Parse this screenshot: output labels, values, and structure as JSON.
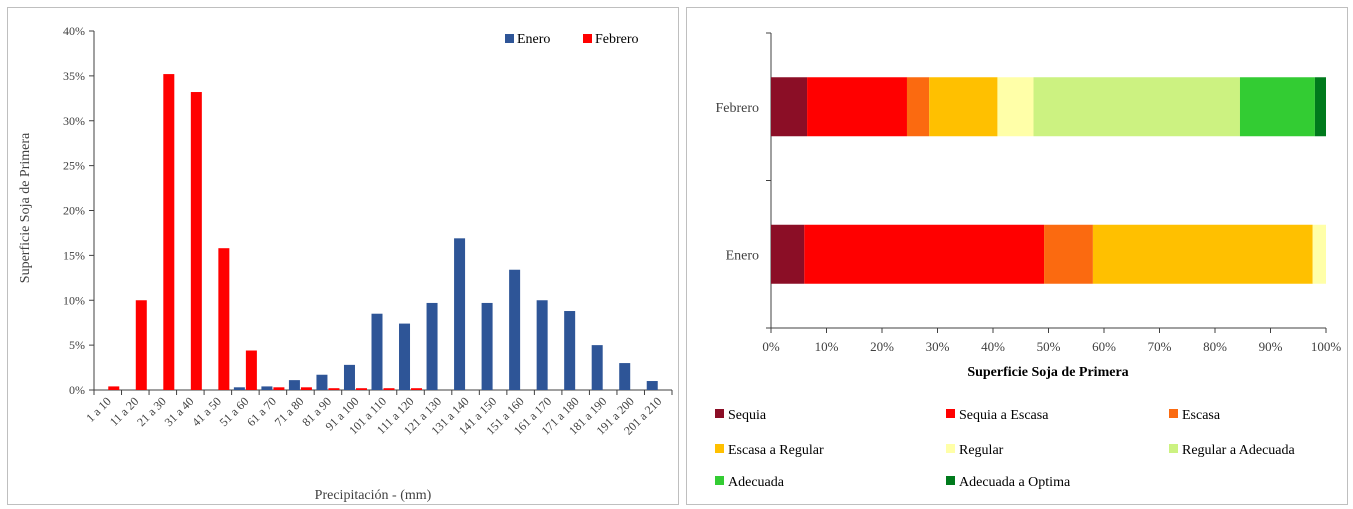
{
  "chart_data": [
    {
      "type": "bar",
      "xlabel": "Precipitación - (mm)",
      "ylabel": "Superficie Soja de Primera",
      "ylim": [
        0,
        0.4
      ],
      "yticks": [
        "0%",
        "5%",
        "10%",
        "15%",
        "20%",
        "25%",
        "30%",
        "35%",
        "40%"
      ],
      "categories": [
        "1 a 10",
        "11 a 20",
        "21 a 30",
        "31 a 40",
        "41 a 50",
        "51 a 60",
        "61 a 70",
        "71 a 80",
        "81 a 90",
        "91 a 100",
        "101 a 110",
        "111 a 120",
        "121 a 130",
        "131 a 140",
        "141 a 150",
        "151 a 160",
        "161 a 170",
        "171 a 180",
        "181 a 190",
        "191 a 200",
        "201 a 210"
      ],
      "series": [
        {
          "name": "Enero",
          "color": "#2e5597",
          "values": [
            0,
            0,
            0,
            0,
            0,
            0.003,
            0.004,
            0.011,
            0.017,
            0.028,
            0.085,
            0.074,
            0.097,
            0.169,
            0.097,
            0.134,
            0.1,
            0.088,
            0.05,
            0.03,
            0.01
          ]
        },
        {
          "name": "Febrero",
          "color": "#ff0000",
          "values": [
            0.004,
            0.1,
            0.352,
            0.332,
            0.158,
            0.044,
            0.003,
            0.003,
            0.002,
            0.002,
            0.002,
            0.002,
            0,
            0,
            0,
            0,
            0,
            0,
            0,
            0,
            0
          ]
        }
      ],
      "legend_position": "top-right",
      "grid": false
    },
    {
      "type": "bar",
      "orientation": "horizontal",
      "stacked": true,
      "xlabel": "Superficie Soja de Primera",
      "xlim": [
        0,
        1
      ],
      "xticks": [
        "0%",
        "10%",
        "20%",
        "30%",
        "40%",
        "50%",
        "60%",
        "70%",
        "80%",
        "90%",
        "100%"
      ],
      "categories": [
        "Febrero",
        "Enero"
      ],
      "series": [
        {
          "name": "Sequia",
          "color": "#8b0e26",
          "values": [
            0.065,
            0.06
          ]
        },
        {
          "name": "Sequia a Escasa",
          "color": "#ff0000",
          "values": [
            0.18,
            0.432
          ]
        },
        {
          "name": "Escasa",
          "color": "#fb6a10",
          "values": [
            0.04,
            0.088
          ]
        },
        {
          "name": "Escasa a Regular",
          "color": "#ffc000",
          "values": [
            0.123,
            0.396
          ]
        },
        {
          "name": "Regular",
          "color": "#ffffa8",
          "values": [
            0.065,
            0.024
          ]
        },
        {
          "name": "Regular a Adecuada",
          "color": "#ccf281",
          "values": [
            0.372,
            0
          ]
        },
        {
          "name": "Adecuada",
          "color": "#33cc33",
          "values": [
            0.135,
            0
          ]
        },
        {
          "name": "Adecuada a Optima",
          "color": "#007a1c",
          "values": [
            0.02,
            0
          ]
        }
      ],
      "legend_position": "bottom",
      "grid": false
    }
  ]
}
